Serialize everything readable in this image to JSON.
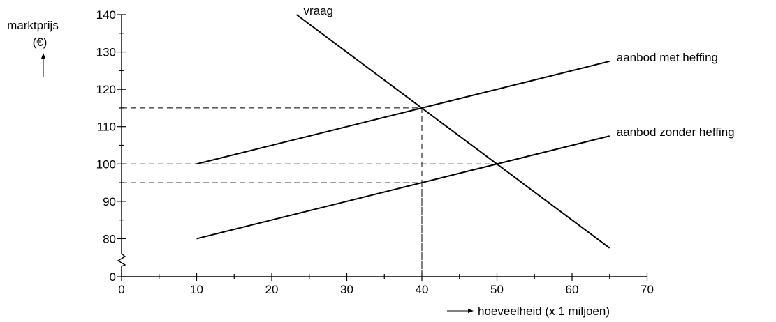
{
  "chart_data": {
    "type": "line",
    "ylabel": "marktprijs",
    "yunit": "(€)",
    "xlabel": "hoeveelheid (x 1 miljoen)",
    "xlim": [
      0,
      70
    ],
    "ylim": [
      70,
      140
    ],
    "xticks": [
      0,
      10,
      20,
      30,
      40,
      50,
      60,
      70
    ],
    "yticks": [
      0,
      80,
      90,
      100,
      110,
      120,
      130,
      140
    ],
    "axis_break": true,
    "grid": false,
    "series": [
      {
        "name": "vraag",
        "x": [
          23.3,
          65
        ],
        "y": [
          140,
          77.5
        ]
      },
      {
        "name": "aanbod met heffing",
        "x": [
          10,
          65
        ],
        "y": [
          100,
          127.5
        ]
      },
      {
        "name": "aanbod zonder heffing",
        "x": [
          10,
          65
        ],
        "y": [
          80,
          107.5
        ]
      }
    ],
    "guides": [
      {
        "x": 40,
        "y": 115
      },
      {
        "x": 50,
        "y": 100
      },
      {
        "x": 40,
        "y": 95
      }
    ]
  }
}
